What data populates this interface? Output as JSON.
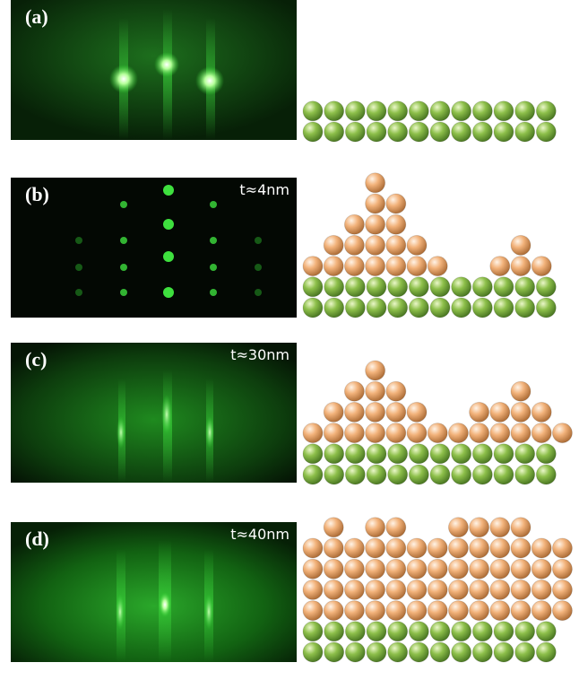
{
  "figure": {
    "panels": [
      {
        "id": "a",
        "label": "(a)",
        "thickness": "",
        "layers": {
          "substrate": 2,
          "film": []
        }
      },
      {
        "id": "b",
        "label": "(b)",
        "thickness": "t≈4nm",
        "layers": {
          "substrate": 2,
          "film": [
            [
              0,
              1,
              2,
              3,
              4,
              5,
              6,
              9,
              10,
              11
            ],
            [
              1,
              2,
              3,
              4,
              5,
              10
            ],
            [
              2,
              3,
              4
            ],
            [
              3,
              4
            ],
            [
              3
            ]
          ]
        }
      },
      {
        "id": "c",
        "label": "(c)",
        "thickness": "t≈30nm",
        "layers": {
          "substrate": 2,
          "film": [
            [
              0,
              1,
              2,
              3,
              4,
              5,
              6,
              7,
              8,
              9,
              10,
              11,
              12
            ],
            [
              1,
              2,
              3,
              4,
              5,
              8,
              9,
              10,
              11
            ],
            [
              2,
              3,
              4,
              10
            ],
            [
              3
            ]
          ]
        }
      },
      {
        "id": "d",
        "label": "(d)",
        "thickness": "t≈40nm",
        "layers": {
          "substrate": 2,
          "film": [
            [
              0,
              1,
              2,
              3,
              4,
              5,
              6,
              7,
              8,
              9,
              10,
              11,
              12
            ],
            [
              0,
              1,
              2,
              3,
              4,
              5,
              6,
              7,
              8,
              9,
              10,
              11,
              12
            ],
            [
              0,
              1,
              2,
              3,
              4,
              5,
              6,
              7,
              8,
              9,
              10,
              11,
              12
            ],
            [
              0,
              1,
              2,
              3,
              4,
              5,
              6,
              7,
              8,
              9,
              10,
              11,
              12
            ],
            [
              1,
              3,
              4,
              7,
              8,
              9,
              10
            ]
          ]
        }
      }
    ],
    "colors": {
      "substrate": "#8dbf4a",
      "film": "#f2b27a",
      "rheed_glow": "#2fd52f"
    }
  }
}
